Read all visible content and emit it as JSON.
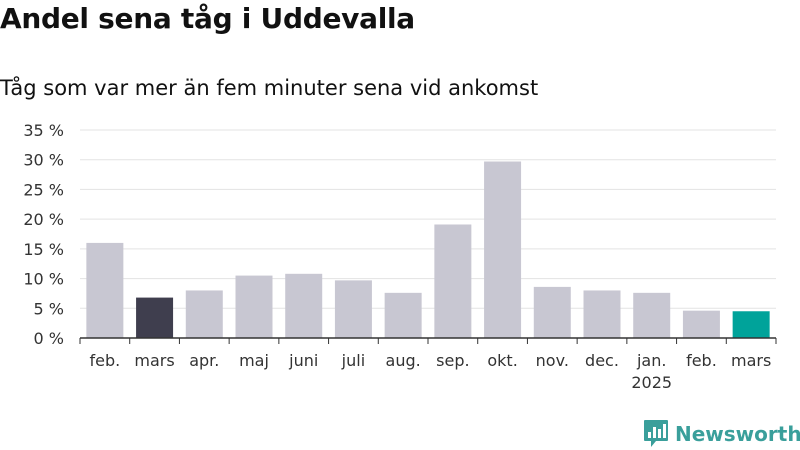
{
  "header": {
    "title": "Andel sena tåg i Uddevalla",
    "subtitle": "Tåg som var mer än fem minuter sena vid ankomst"
  },
  "brand": {
    "name": "Newsworthy",
    "color": "#3a9f9b",
    "icon": "bar-chart-speech-bubble-icon"
  },
  "chart_data": {
    "type": "bar",
    "categories": [
      "feb.",
      "mars",
      "apr.",
      "maj",
      "juni",
      "juli",
      "aug.",
      "sep.",
      "okt.",
      "nov.",
      "dec.",
      "jan.",
      "feb.",
      "mars"
    ],
    "category_sublabels": [
      "",
      "",
      "",
      "",
      "",
      "",
      "",
      "",
      "",
      "",
      "",
      "2025",
      "",
      ""
    ],
    "values": [
      16.0,
      6.8,
      8.0,
      10.5,
      10.8,
      9.7,
      7.6,
      19.1,
      29.7,
      8.6,
      8.0,
      7.6,
      4.6,
      4.5
    ],
    "bar_colors": [
      "#c8c7d2",
      "#3f3e4e",
      "#c8c7d2",
      "#c8c7d2",
      "#c8c7d2",
      "#c8c7d2",
      "#c8c7d2",
      "#c8c7d2",
      "#c8c7d2",
      "#c8c7d2",
      "#c8c7d2",
      "#c8c7d2",
      "#c8c7d2",
      "#00a39a"
    ],
    "y_ticks": [
      0,
      5,
      10,
      15,
      20,
      25,
      30,
      35
    ],
    "y_tick_labels": [
      "0 %",
      "5 %",
      "10 %",
      "15 %",
      "20 %",
      "25 %",
      "30 %",
      "35 %"
    ],
    "ylim": [
      0,
      35
    ],
    "grid": true,
    "title": "Andel sena tåg i Uddevalla",
    "subtitle": "Tåg som var mer än fem minuter sena vid ankomst"
  }
}
